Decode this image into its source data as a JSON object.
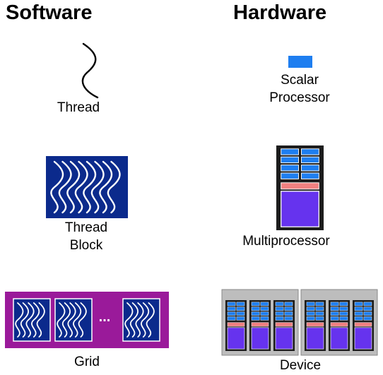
{
  "headings": {
    "software": "Software",
    "hardware": "Hardware"
  },
  "software": {
    "thread": {
      "label": "Thread"
    },
    "thread_block": {
      "label_line1": "Thread",
      "label_line2": "Block"
    },
    "grid": {
      "label": "Grid",
      "ellipsis": "..."
    }
  },
  "hardware": {
    "scalar_processor": {
      "label_line1": "Scalar",
      "label_line2": "Processor"
    },
    "multiprocessor": {
      "label": "Multiprocessor"
    },
    "device": {
      "label": "Device"
    }
  },
  "colors": {
    "block_fill": "#0b2a8c",
    "grid_fill": "#9a1a9a",
    "processor_blue": "#1e7ef0",
    "mp_dark": "#1c1c1c",
    "mp_pink": "#f08080",
    "mp_purple": "#6633ee",
    "device_gray": "#888888",
    "device_light": "#bdbdbd"
  }
}
